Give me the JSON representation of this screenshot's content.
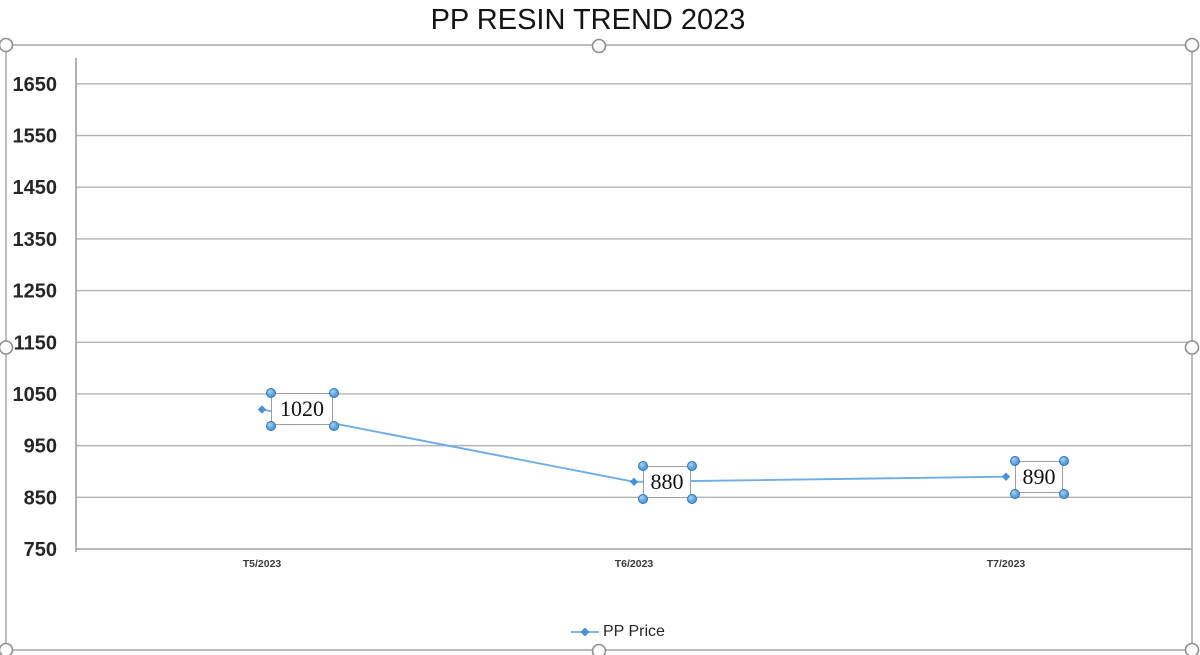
{
  "chart_data": {
    "type": "line",
    "title": "PP RESIN TREND 2023",
    "categories": [
      "T5/2023",
      "T6/2023",
      "T7/2023"
    ],
    "series": [
      {
        "name": "PP Price",
        "values": [
          1020,
          880,
          890
        ],
        "data_labels": [
          "1020",
          "880",
          "890"
        ]
      }
    ],
    "xlabel": "",
    "ylabel": "",
    "ylim": [
      750,
      1700
    ],
    "y_ticks": [
      750,
      850,
      950,
      1050,
      1150,
      1250,
      1350,
      1450,
      1550,
      1650
    ],
    "grid": true,
    "legend": {
      "position": "bottom",
      "entries": [
        "PP Price"
      ]
    },
    "marker_shape": "diamond"
  },
  "colors": {
    "series_line": "#6fade3",
    "marker": "#4a90d5",
    "gridline": "#b3b3b3",
    "axis_line": "#9f9f9f",
    "selection_border": "#b0b0b0",
    "selection_handle_fill": "#fdfdfd",
    "selection_handle_stroke": "#8e8e8e",
    "label_handle_fill": "#55a1dd",
    "label_handle_stroke": "#2e74b5",
    "label_box_border": "#9e9e9e",
    "tick_text": "#262626",
    "x_tick_text": "#3a3a3a",
    "title_text": "#141414"
  }
}
